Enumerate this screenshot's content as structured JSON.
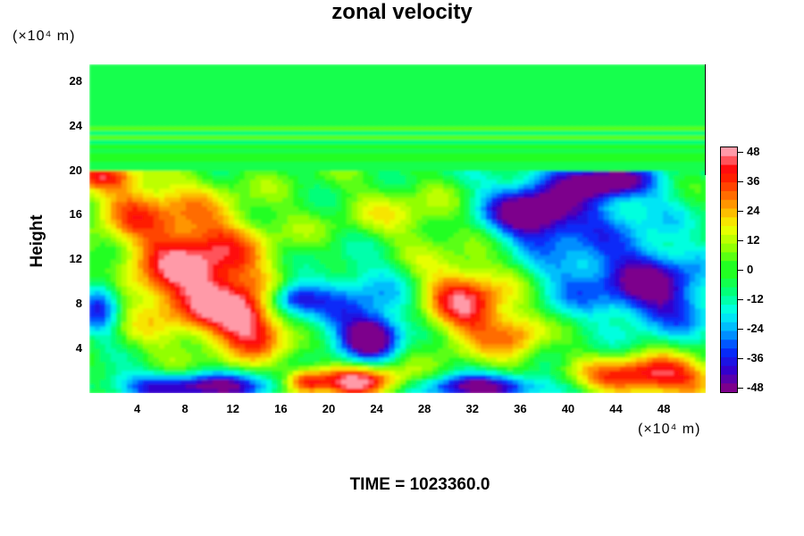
{
  "title": "zonal velocity",
  "y_unit": "(×10⁴ m)",
  "x_unit": "(×10⁴ m)",
  "ylabel": "Height",
  "time_label": "TIME = 1023360.0",
  "colors": {
    "background": "#ffffff",
    "colormap": [
      "#7d008c",
      "#2d00d2",
      "#0032ff",
      "#00aaff",
      "#00fff0",
      "#00ff80",
      "#22ff22",
      "#9bff00",
      "#f4ff00",
      "#ffaa00",
      "#ff5000",
      "#ff0000",
      "#ff9aa8"
    ]
  },
  "chart_data": {
    "type": "heatmap",
    "title": "zonal velocity",
    "xlabel": "",
    "ylabel": "Height",
    "x_unit": "(×10⁴ m)",
    "y_unit": "(×10⁴ m)",
    "xlim": [
      0,
      51.5
    ],
    "ylim": [
      0,
      29.5
    ],
    "x_ticks": [
      4,
      8,
      12,
      16,
      20,
      24,
      28,
      32,
      36,
      40,
      44,
      48
    ],
    "y_ticks": [
      4,
      8,
      12,
      16,
      20,
      24,
      28
    ],
    "colorbar": {
      "range": [
        -50,
        50
      ],
      "ticks": [
        48,
        36,
        24,
        12,
        0,
        -12,
        -24,
        -36,
        -48
      ]
    },
    "background_value": -2,
    "features": [
      {
        "kind": "stratified_band",
        "y_range": [
          20,
          29.5
        ],
        "value": -2
      },
      {
        "kind": "blob",
        "x": 9,
        "y": 11,
        "sx": 4.5,
        "sy": 4,
        "rot": -50,
        "value": 52
      },
      {
        "kind": "blob",
        "x": 13.5,
        "y": 6,
        "sx": 2.5,
        "sy": 1.5,
        "rot": -40,
        "value": 40
      },
      {
        "kind": "blob",
        "x": 3.5,
        "y": 17,
        "sx": 2.5,
        "sy": 1.8,
        "rot": 0,
        "value": 20
      },
      {
        "kind": "blob",
        "x": 1,
        "y": 19.5,
        "sx": 2,
        "sy": 0.8,
        "rot": 0,
        "value": 28
      },
      {
        "kind": "blob",
        "x": 31.5,
        "y": 8,
        "sx": 3,
        "sy": 2.5,
        "rot": -35,
        "value": 45
      },
      {
        "kind": "blob",
        "x": 22.5,
        "y": 1,
        "sx": 3,
        "sy": 1,
        "rot": 0,
        "value": 50
      },
      {
        "kind": "blob",
        "x": 47,
        "y": 1.5,
        "sx": 4,
        "sy": 1.3,
        "rot": 0,
        "value": 48
      },
      {
        "kind": "blob",
        "x": 18,
        "y": 1,
        "sx": 1.2,
        "sy": 0.8,
        "rot": 0,
        "value": 35
      },
      {
        "kind": "blob",
        "x": 27,
        "y": 16,
        "sx": 4,
        "sy": 2,
        "rot": 0,
        "value": 15
      },
      {
        "kind": "blob",
        "x": 36,
        "y": 5,
        "sx": 1.5,
        "sy": 1.5,
        "rot": 0,
        "value": 20
      },
      {
        "kind": "blob",
        "x": 47,
        "y": 9.5,
        "sx": 3.5,
        "sy": 2.5,
        "rot": -20,
        "value": -52
      },
      {
        "kind": "blob",
        "x": 43,
        "y": 19,
        "sx": 2.5,
        "sy": 1,
        "rot": 0,
        "value": -45
      },
      {
        "kind": "blob",
        "x": 37,
        "y": 16,
        "sx": 2.5,
        "sy": 1.5,
        "rot": 0,
        "value": -45
      },
      {
        "kind": "blob",
        "x": 40,
        "y": 17,
        "sx": 6,
        "sy": 3,
        "rot": 0,
        "value": -28
      },
      {
        "kind": "blob",
        "x": 23.5,
        "y": 5,
        "sx": 1.5,
        "sy": 1.2,
        "rot": 0,
        "value": -50
      },
      {
        "kind": "blob",
        "x": 22.5,
        "y": 7.5,
        "sx": 3.5,
        "sy": 3,
        "rot": 0,
        "value": -30
      },
      {
        "kind": "blob",
        "x": 17,
        "y": 8.5,
        "sx": 1.5,
        "sy": 1,
        "rot": 0,
        "value": -40
      },
      {
        "kind": "blob",
        "x": 9,
        "y": 0.6,
        "sx": 5,
        "sy": 0.9,
        "rot": 0,
        "value": -52
      },
      {
        "kind": "blob",
        "x": 33,
        "y": 0.5,
        "sx": 4,
        "sy": 0.8,
        "rot": 0,
        "value": -52
      },
      {
        "kind": "blob",
        "x": 1,
        "y": 8,
        "sx": 1.2,
        "sy": 2,
        "rot": 0,
        "value": -38
      },
      {
        "kind": "blob",
        "x": 40,
        "y": 10,
        "sx": 2.5,
        "sy": 2.5,
        "rot": 0,
        "value": -18
      }
    ]
  }
}
